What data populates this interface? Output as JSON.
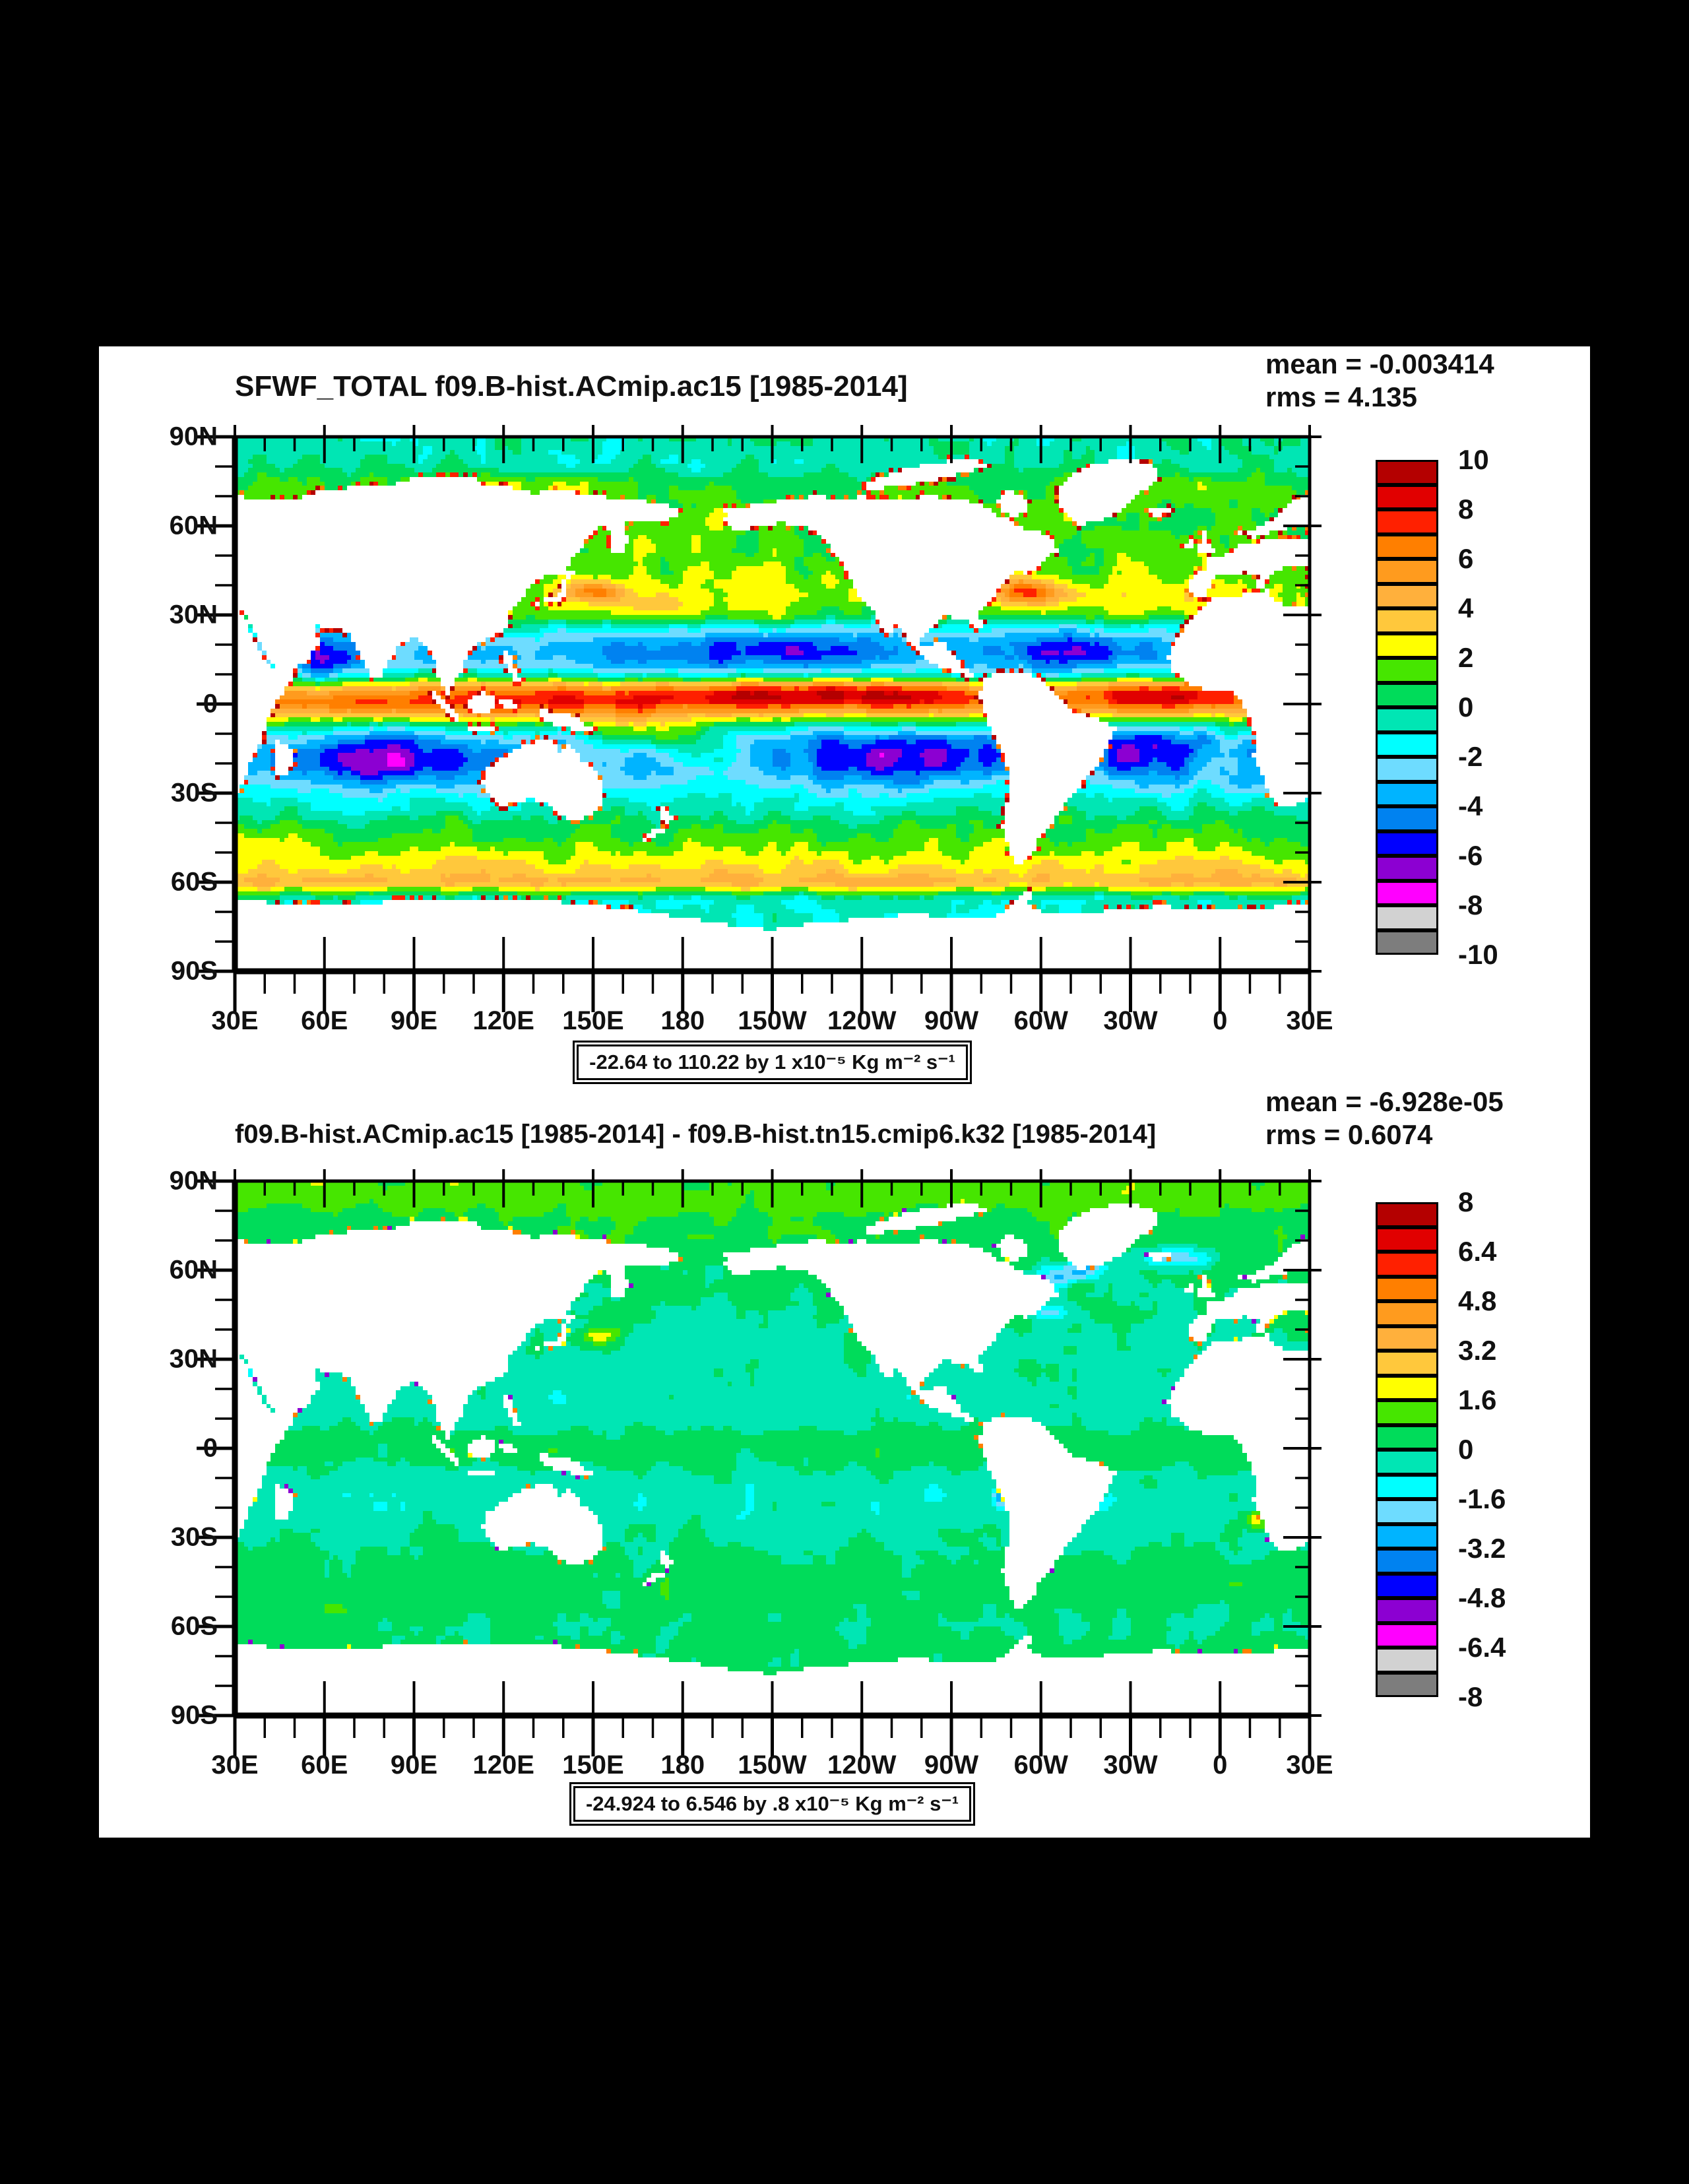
{
  "window": {
    "background": "#000000",
    "panel_background": "#ffffff"
  },
  "chart_data": [
    {
      "type": "heatmap",
      "title": "SFWF_TOTAL f09.B-hist.ACmip.ac15 [1985-2014]",
      "mean_label": "mean = -0.003414",
      "rms_label": "rms = 4.135",
      "caption": "-22.64 to 110.22 by 1 x10⁻⁵ Kg m⁻² s⁻¹",
      "lat_ticks": [
        "90N",
        "60N",
        "30N",
        "0",
        "30S",
        "60S",
        "90S"
      ],
      "lon_ticks": [
        "30E",
        "60E",
        "90E",
        "120E",
        "150E",
        "180",
        "150W",
        "120W",
        "90W",
        "60W",
        "30W",
        "0",
        "30E"
      ],
      "colorbar": {
        "labels": [
          "10",
          "8",
          "6",
          "4",
          "2",
          "0",
          "-2",
          "-4",
          "-6",
          "-8",
          "-10"
        ],
        "max": 10,
        "step": 1,
        "colors": [
          "#b40000",
          "#e10000",
          "#ff2000",
          "#ff7f00",
          "#ff9b1e",
          "#ffb03c",
          "#ffc83c",
          "#ffff00",
          "#46e600",
          "#00dc5a",
          "#00e6b4",
          "#00ffff",
          "#6edcff",
          "#00b4ff",
          "#0082f0",
          "#0000ff",
          "#8c00d2",
          "#ff00ff",
          "#d2d2d2",
          "#7d7d7d"
        ]
      },
      "field": {
        "seed": 7,
        "noise": [
          0.85,
          0.4
        ],
        "coastal": [
          0.1,
          0.26,
          0.34
        ],
        "profile": [
          [
            90,
            -0.4
          ],
          [
            81,
            -0.4
          ],
          [
            76,
            0.6
          ],
          [
            70,
            1.1
          ],
          [
            62,
            1.2
          ],
          [
            52,
            1.3
          ],
          [
            44,
            1.7
          ],
          [
            36,
            2.3
          ],
          [
            30,
            1.6
          ],
          [
            26,
            -0.8
          ],
          [
            21,
            -2.6
          ],
          [
            17,
            -3.0
          ],
          [
            13,
            -2.4
          ],
          [
            10,
            -0.8
          ],
          [
            7,
            2.2
          ],
          [
            4,
            5.2
          ],
          [
            1,
            6.4
          ],
          [
            -2,
            5.0
          ],
          [
            -5,
            2.2
          ],
          [
            -8,
            -0.6
          ],
          [
            -12,
            -2.6
          ],
          [
            -17,
            -3.4
          ],
          [
            -22,
            -3.2
          ],
          [
            -27,
            -2.2
          ],
          [
            -32,
            -1.0
          ],
          [
            -36,
            -0.4
          ],
          [
            -40,
            0.6
          ],
          [
            -45,
            1.4
          ],
          [
            -49,
            2.0
          ],
          [
            -53,
            2.8
          ],
          [
            -57,
            3.6
          ],
          [
            -60,
            4.4
          ],
          [
            -62,
            2.6
          ],
          [
            -64,
            0.6
          ],
          [
            -66,
            -0.8
          ],
          [
            -90,
            -0.8
          ]
        ],
        "features": [
          [
            172,
            33,
            9,
            3,
            1.6
          ],
          [
            185,
            33,
            30,
            7,
            0.5
          ],
          [
            205,
            18,
            38,
            6,
            -2.2
          ],
          [
            210,
            20,
            7,
            3,
            -1.1
          ],
          [
            310,
            18,
            22,
            6,
            -2.4
          ],
          [
            316,
            18,
            7,
            2.5,
            -1.0
          ],
          [
            62,
            15,
            9,
            6,
            -3.0
          ],
          [
            230,
            4,
            42,
            3,
            3.8
          ],
          [
            135,
            2,
            35,
            5,
            1.8
          ],
          [
            345,
            4,
            20,
            3,
            3.2
          ],
          [
            165,
            -9,
            12,
            4,
            2.6
          ],
          [
            182,
            -14,
            12,
            4,
            2.0
          ],
          [
            198,
            -19,
            12,
            4,
            1.5
          ],
          [
            250,
            -17,
            24,
            7,
            -3.1
          ],
          [
            335,
            -15,
            13,
            6,
            -3.2
          ],
          [
            82,
            -19,
            20,
            7,
            -3.1
          ],
          [
            150,
            38,
            7,
            2.5,
            4.5
          ],
          [
            296,
            38,
            9,
            2.8,
            4.5
          ],
          [
            240,
            28,
            8,
            5,
            -1.2
          ],
          [
            120,
            74,
            25,
            2.5,
            1.3
          ],
          [
            192,
            62,
            8,
            3,
            1.0
          ],
          [
            340,
            73,
            15,
            3,
            1.1
          ]
        ]
      }
    },
    {
      "type": "heatmap",
      "title": "f09.B-hist.ACmip.ac15 [1985-2014] - f09.B-hist.tn15.cmip6.k32 [1985-2014]",
      "mean_label": "mean = -6.928e-05",
      "rms_label": "rms = 0.6074",
      "caption": "-24.924 to 6.546 by .8 x10⁻⁵ Kg m⁻² s⁻¹",
      "lat_ticks": [
        "90N",
        "60N",
        "30N",
        "0",
        "30S",
        "60S",
        "90S"
      ],
      "lon_ticks": [
        "30E",
        "60E",
        "90E",
        "120E",
        "150E",
        "180",
        "150W",
        "120W",
        "90W",
        "60W",
        "30W",
        "0",
        "30E"
      ],
      "colorbar": {
        "labels": [
          "8",
          "6.4",
          "4.8",
          "3.2",
          "1.6",
          "0",
          "-1.6",
          "-3.2",
          "-4.8",
          "-6.4",
          "-8"
        ],
        "max": 8,
        "step": 0.8,
        "colors": [
          "#b40000",
          "#e10000",
          "#ff2000",
          "#ff7f00",
          "#ff9b1e",
          "#ffb03c",
          "#ffc83c",
          "#ffff00",
          "#46e600",
          "#00dc5a",
          "#00e6b4",
          "#00ffff",
          "#6edcff",
          "#00b4ff",
          "#0082f0",
          "#0000ff",
          "#8c00d2",
          "#ff00ff",
          "#d2d2d2",
          "#7d7d7d"
        ]
      },
      "field": {
        "seed": 13,
        "noise": [
          0.4,
          0.22
        ],
        "coastal": [
          0.05,
          0.08,
          0.1
        ],
        "profile": [
          [
            90,
            1.2
          ],
          [
            83,
            1.2
          ],
          [
            77,
            0.55
          ],
          [
            70,
            0.5
          ],
          [
            62,
            0.45
          ],
          [
            54,
            0.2
          ],
          [
            46,
            0.0
          ],
          [
            38,
            -0.15
          ],
          [
            30,
            -0.3
          ],
          [
            22,
            -0.4
          ],
          [
            15,
            -0.45
          ],
          [
            9,
            -0.25
          ],
          [
            4,
            0.3
          ],
          [
            0,
            0.45
          ],
          [
            -4,
            0.3
          ],
          [
            -9,
            -0.2
          ],
          [
            -14,
            -0.4
          ],
          [
            -20,
            -0.45
          ],
          [
            -26,
            -0.3
          ],
          [
            -31,
            -0.1
          ],
          [
            -36,
            0.25
          ],
          [
            -42,
            0.4
          ],
          [
            -50,
            0.4
          ],
          [
            -56,
            0.3
          ],
          [
            -60,
            0.1
          ],
          [
            -64,
            0.2
          ],
          [
            -68,
            0.35
          ],
          [
            -90,
            0.35
          ]
        ],
        "features": [
          [
            308,
            57,
            7,
            3,
            -3.2
          ],
          [
            315,
            61,
            5,
            2,
            -2.4
          ],
          [
            303,
            46,
            4,
            2,
            -2.0
          ],
          [
            345,
            64,
            9,
            2.5,
            -2.6
          ],
          [
            312,
            55,
            4,
            2,
            2.0
          ],
          [
            152,
            38,
            4,
            2,
            2.2
          ],
          [
            287,
            -16,
            2,
            2,
            -3.5
          ],
          [
            372,
            -24,
            2.5,
            2,
            2.8
          ]
        ]
      }
    }
  ]
}
